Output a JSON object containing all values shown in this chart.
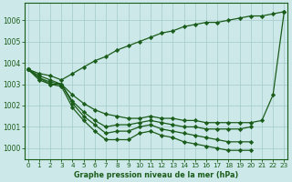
{
  "title": "Graphe pression niveau de la mer (hPa)",
  "x_ticks": [
    0,
    1,
    2,
    3,
    4,
    5,
    6,
    7,
    8,
    9,
    10,
    11,
    12,
    13,
    14,
    15,
    16,
    17,
    18,
    19,
    20,
    21,
    22,
    23
  ],
  "ylim": [
    999.5,
    1006.8
  ],
  "yticks": [
    1000,
    1001,
    1002,
    1003,
    1004,
    1005,
    1006
  ],
  "xlim": [
    -0.3,
    23.3
  ],
  "bg_color": "#cce8e8",
  "grid_color": "#aacece",
  "line_color": "#1a5c1a",
  "series": [
    {
      "x": [
        0,
        1,
        2,
        3,
        4,
        5,
        6,
        7,
        8,
        9,
        10,
        11,
        12,
        13,
        14,
        15,
        16,
        17,
        18,
        19,
        20,
        21,
        22,
        23
      ],
      "y": [
        1003.7,
        1003.5,
        1003.4,
        1003.2,
        1003.5,
        1003.8,
        1004.1,
        1004.3,
        1004.6,
        1004.8,
        1005.0,
        1005.2,
        1005.4,
        1005.5,
        1005.7,
        1005.8,
        1005.9,
        1005.9,
        1006.0,
        1006.1,
        1006.2,
        1006.2,
        1006.3,
        1006.4
      ]
    },
    {
      "x": [
        0,
        1,
        2,
        3,
        4,
        5,
        6,
        7,
        8,
        9,
        10,
        11,
        12,
        13,
        14,
        15,
        16,
        17,
        18,
        19,
        20,
        21,
        22,
        23
      ],
      "y": [
        1003.7,
        1003.4,
        1003.2,
        1003.0,
        1002.5,
        1002.1,
        1001.8,
        1001.6,
        1001.5,
        1001.4,
        1001.4,
        1001.5,
        1001.4,
        1001.4,
        1001.3,
        1001.3,
        1001.2,
        1001.2,
        1001.2,
        1001.2,
        1001.2,
        1001.3,
        1002.5,
        1006.4
      ]
    },
    {
      "x": [
        0,
        1,
        2,
        3,
        4,
        5,
        6,
        7,
        8,
        9,
        10,
        11,
        12,
        13,
        14,
        15,
        16,
        17,
        18,
        19,
        20
      ],
      "y": [
        1003.7,
        1003.3,
        1003.1,
        1003.0,
        1002.2,
        1001.7,
        1001.3,
        1001.0,
        1001.1,
        1001.1,
        1001.2,
        1001.3,
        1001.2,
        1001.1,
        1001.0,
        1001.0,
        1000.9,
        1000.9,
        1000.9,
        1000.9,
        1001.0
      ]
    },
    {
      "x": [
        0,
        1,
        2,
        3,
        4,
        5,
        6,
        7,
        8,
        9,
        10,
        11,
        12,
        13,
        14,
        15,
        16,
        17,
        18,
        19,
        20
      ],
      "y": [
        1003.7,
        1003.3,
        1003.0,
        1003.0,
        1002.1,
        1001.5,
        1001.1,
        1000.7,
        1000.8,
        1000.8,
        1001.0,
        1001.1,
        1000.9,
        1000.8,
        1000.7,
        1000.6,
        1000.5,
        1000.4,
        1000.3,
        1000.3,
        1000.3
      ]
    },
    {
      "x": [
        0,
        1,
        2,
        3,
        4,
        5,
        6,
        7,
        8,
        9,
        10,
        11,
        12,
        13,
        14,
        15,
        16,
        17,
        18,
        19,
        20
      ],
      "y": [
        1003.7,
        1003.2,
        1003.0,
        1002.9,
        1001.9,
        1001.3,
        1000.8,
        1000.4,
        1000.4,
        1000.4,
        1000.7,
        1000.8,
        1000.6,
        1000.5,
        1000.3,
        1000.2,
        1000.1,
        1000.0,
        999.9,
        999.9,
        999.9
      ]
    }
  ]
}
